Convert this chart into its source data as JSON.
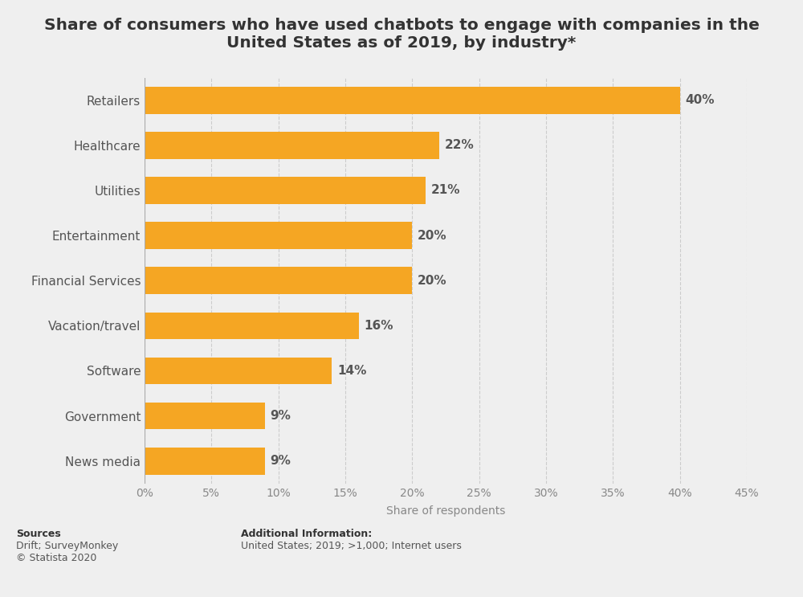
{
  "title": "Share of consumers who have used chatbots to engage with companies in the\nUnited States as of 2019, by industry*",
  "categories": [
    "Retailers",
    "Healthcare",
    "Utilities",
    "Entertainment",
    "Financial Services",
    "Vacation/travel",
    "Software",
    "Government",
    "News media"
  ],
  "values": [
    40,
    22,
    21,
    20,
    20,
    16,
    14,
    9,
    9
  ],
  "bar_color": "#F5A623",
  "background_color": "#efefef",
  "xlabel": "Share of respondents",
  "xlim": [
    0,
    45
  ],
  "xticks": [
    0,
    5,
    10,
    15,
    20,
    25,
    30,
    35,
    40,
    45
  ],
  "title_fontsize": 14.5,
  "label_fontsize": 11,
  "tick_fontsize": 10,
  "annotation_fontsize": 11,
  "annotation_color": "#555555",
  "ylabel_color": "#777777",
  "grid_color": "#cccccc",
  "sources_bold": "Sources",
  "sources_normal": "\nDrift; SurveyMonkey\n© Statista 2020",
  "additional_bold": "Additional Information:",
  "additional_normal": "\nUnited States; 2019; >1,000; Internet users"
}
